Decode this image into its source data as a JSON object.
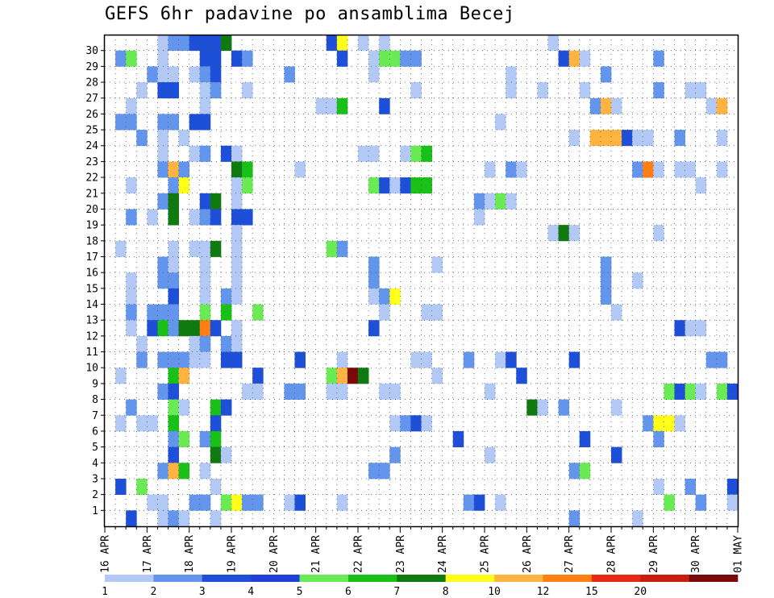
{
  "chart_data": {
    "type": "heatmap",
    "title": "GEFS 6hr padavine po ansamblima Becej",
    "xlabel": "",
    "ylabel": "",
    "x_ticks": [
      "16 APR",
      "17 APR",
      "18 APR",
      "19 APR",
      "20 APR",
      "21 APR",
      "22 APR",
      "23 APR",
      "24 APR",
      "25 APR",
      "26 APR",
      "27 APR",
      "28 APR",
      "29 APR",
      "30 APR",
      "01 MAY"
    ],
    "y_range": [
      1,
      30
    ],
    "steps_per_day": 4,
    "grid": "dotted",
    "legend_position": "bottom",
    "legend": {
      "levels": [
        "1",
        "2",
        "3",
        "4",
        "5",
        "6",
        "7",
        "8",
        "10",
        "12",
        "15",
        "20"
      ],
      "colors": [
        "#b3c9f5",
        "#6495ed",
        "#1e4fd8",
        "#1f3fd6",
        "#6aea55",
        "#18c018",
        "#0f7a0f",
        "#ffff1a",
        "#ffb340",
        "#ff7f14",
        "#e62814",
        "#c81e0e",
        "#7a0a0a"
      ]
    },
    "cells": [
      [
        30,
        5,
        0
      ],
      [
        30,
        6,
        1
      ],
      [
        30,
        7,
        1
      ],
      [
        30,
        8,
        2
      ],
      [
        30,
        9,
        2
      ],
      [
        30,
        10,
        2
      ],
      [
        30,
        11,
        6
      ],
      [
        30,
        21,
        2
      ],
      [
        30,
        22,
        7
      ],
      [
        30,
        24,
        0
      ],
      [
        30,
        26,
        0
      ],
      [
        30,
        42,
        0
      ],
      [
        29,
        1,
        1
      ],
      [
        29,
        2,
        4
      ],
      [
        29,
        5,
        0
      ],
      [
        29,
        9,
        2
      ],
      [
        29,
        10,
        2
      ],
      [
        29,
        12,
        2
      ],
      [
        29,
        13,
        1
      ],
      [
        29,
        22,
        2
      ],
      [
        29,
        25,
        0
      ],
      [
        29,
        26,
        4
      ],
      [
        29,
        27,
        4
      ],
      [
        29,
        28,
        1
      ],
      [
        29,
        29,
        1
      ],
      [
        29,
        43,
        2
      ],
      [
        29,
        44,
        8
      ],
      [
        29,
        45,
        0
      ],
      [
        29,
        52,
        1
      ],
      [
        28,
        4,
        1
      ],
      [
        28,
        5,
        0
      ],
      [
        28,
        6,
        0
      ],
      [
        28,
        8,
        0
      ],
      [
        28,
        9,
        1
      ],
      [
        28,
        10,
        2
      ],
      [
        28,
        17,
        1
      ],
      [
        28,
        25,
        0
      ],
      [
        28,
        38,
        0
      ],
      [
        28,
        47,
        1
      ],
      [
        27,
        3,
        0
      ],
      [
        27,
        5,
        2
      ],
      [
        27,
        6,
        2
      ],
      [
        27,
        9,
        0
      ],
      [
        27,
        10,
        1
      ],
      [
        27,
        13,
        0
      ],
      [
        27,
        29,
        0
      ],
      [
        27,
        38,
        0
      ],
      [
        27,
        41,
        0
      ],
      [
        27,
        45,
        0
      ],
      [
        27,
        52,
        1
      ],
      [
        27,
        55,
        0
      ],
      [
        27,
        56,
        0
      ],
      [
        26,
        2,
        0
      ],
      [
        26,
        9,
        0
      ],
      [
        26,
        20,
        0
      ],
      [
        26,
        21,
        0
      ],
      [
        26,
        22,
        5
      ],
      [
        26,
        26,
        2
      ],
      [
        26,
        46,
        1
      ],
      [
        26,
        47,
        8
      ],
      [
        26,
        48,
        0
      ],
      [
        26,
        57,
        0
      ],
      [
        26,
        58,
        8
      ],
      [
        25,
        1,
        1
      ],
      [
        25,
        2,
        1
      ],
      [
        25,
        5,
        1
      ],
      [
        25,
        6,
        1
      ],
      [
        25,
        8,
        2
      ],
      [
        25,
        9,
        2
      ],
      [
        25,
        37,
        0
      ],
      [
        24,
        3,
        1
      ],
      [
        24,
        5,
        0
      ],
      [
        24,
        7,
        0
      ],
      [
        24,
        44,
        0
      ],
      [
        24,
        46,
        8
      ],
      [
        24,
        47,
        8
      ],
      [
        24,
        48,
        8
      ],
      [
        24,
        49,
        2
      ],
      [
        24,
        50,
        0
      ],
      [
        24,
        51,
        0
      ],
      [
        24,
        54,
        1
      ],
      [
        24,
        58,
        0
      ],
      [
        23,
        5,
        0
      ],
      [
        23,
        8,
        0
      ],
      [
        23,
        9,
        1
      ],
      [
        23,
        11,
        2
      ],
      [
        23,
        12,
        0
      ],
      [
        23,
        24,
        0
      ],
      [
        23,
        25,
        0
      ],
      [
        23,
        28,
        0
      ],
      [
        23,
        29,
        4
      ],
      [
        23,
        30,
        5
      ],
      [
        22,
        5,
        1
      ],
      [
        22,
        6,
        8
      ],
      [
        22,
        7,
        1
      ],
      [
        22,
        12,
        6
      ],
      [
        22,
        13,
        5
      ],
      [
        22,
        18,
        0
      ],
      [
        22,
        36,
        0
      ],
      [
        22,
        38,
        1
      ],
      [
        22,
        39,
        0
      ],
      [
        22,
        50,
        1
      ],
      [
        22,
        51,
        9
      ],
      [
        22,
        52,
        0
      ],
      [
        22,
        54,
        0
      ],
      [
        22,
        55,
        0
      ],
      [
        22,
        58,
        0
      ],
      [
        21,
        2,
        0
      ],
      [
        21,
        6,
        1
      ],
      [
        21,
        7,
        7
      ],
      [
        21,
        12,
        0
      ],
      [
        21,
        13,
        4
      ],
      [
        21,
        25,
        4
      ],
      [
        21,
        26,
        2
      ],
      [
        21,
        27,
        0
      ],
      [
        21,
        28,
        2
      ],
      [
        21,
        29,
        5
      ],
      [
        21,
        30,
        5
      ],
      [
        21,
        56,
        0
      ],
      [
        20,
        5,
        1
      ],
      [
        20,
        6,
        6
      ],
      [
        20,
        9,
        2
      ],
      [
        20,
        10,
        6
      ],
      [
        20,
        12,
        0
      ],
      [
        20,
        35,
        1
      ],
      [
        20,
        36,
        0
      ],
      [
        20,
        37,
        4
      ],
      [
        20,
        38,
        0
      ],
      [
        19,
        2,
        1
      ],
      [
        19,
        4,
        0
      ],
      [
        19,
        6,
        6
      ],
      [
        19,
        8,
        0
      ],
      [
        19,
        9,
        1
      ],
      [
        19,
        10,
        2
      ],
      [
        19,
        12,
        2
      ],
      [
        19,
        13,
        2
      ],
      [
        19,
        35,
        0
      ],
      [
        18,
        12,
        0
      ],
      [
        18,
        42,
        0
      ],
      [
        18,
        43,
        6
      ],
      [
        18,
        44,
        0
      ],
      [
        18,
        52,
        0
      ],
      [
        17,
        1,
        0
      ],
      [
        17,
        6,
        0
      ],
      [
        17,
        8,
        0
      ],
      [
        17,
        9,
        0
      ],
      [
        17,
        10,
        6
      ],
      [
        17,
        12,
        0
      ],
      [
        17,
        21,
        4
      ],
      [
        17,
        22,
        1
      ],
      [
        16,
        5,
        1
      ],
      [
        16,
        6,
        0
      ],
      [
        16,
        9,
        0
      ],
      [
        16,
        12,
        0
      ],
      [
        16,
        25,
        1
      ],
      [
        16,
        31,
        0
      ],
      [
        16,
        47,
        1
      ],
      [
        15,
        2,
        0
      ],
      [
        15,
        5,
        1
      ],
      [
        15,
        6,
        1
      ],
      [
        15,
        9,
        0
      ],
      [
        15,
        12,
        0
      ],
      [
        15,
        25,
        1
      ],
      [
        15,
        47,
        1
      ],
      [
        15,
        50,
        0
      ],
      [
        14,
        2,
        0
      ],
      [
        14,
        6,
        2
      ],
      [
        14,
        9,
        0
      ],
      [
        14,
        11,
        1
      ],
      [
        14,
        12,
        0
      ],
      [
        14,
        25,
        0
      ],
      [
        14,
        26,
        1
      ],
      [
        14,
        27,
        7
      ],
      [
        14,
        47,
        1
      ],
      [
        13,
        2,
        1
      ],
      [
        13,
        4,
        1
      ],
      [
        13,
        5,
        1
      ],
      [
        13,
        6,
        1
      ],
      [
        13,
        9,
        4
      ],
      [
        13,
        11,
        5
      ],
      [
        13,
        14,
        4
      ],
      [
        13,
        26,
        0
      ],
      [
        13,
        30,
        0
      ],
      [
        13,
        31,
        0
      ],
      [
        13,
        48,
        0
      ],
      [
        12,
        2,
        0
      ],
      [
        12,
        4,
        2
      ],
      [
        12,
        5,
        5
      ],
      [
        12,
        6,
        1
      ],
      [
        12,
        7,
        6
      ],
      [
        12,
        8,
        6
      ],
      [
        12,
        9,
        9
      ],
      [
        12,
        10,
        2
      ],
      [
        12,
        12,
        0
      ],
      [
        12,
        25,
        2
      ],
      [
        12,
        54,
        2
      ],
      [
        12,
        55,
        0
      ],
      [
        12,
        56,
        0
      ],
      [
        11,
        3,
        0
      ],
      [
        11,
        8,
        0
      ],
      [
        11,
        9,
        1
      ],
      [
        11,
        11,
        1
      ],
      [
        11,
        12,
        0
      ],
      [
        10,
        3,
        1
      ],
      [
        10,
        5,
        1
      ],
      [
        10,
        6,
        1
      ],
      [
        10,
        7,
        1
      ],
      [
        10,
        8,
        0
      ],
      [
        10,
        9,
        0
      ],
      [
        10,
        11,
        2
      ],
      [
        10,
        12,
        2
      ],
      [
        10,
        18,
        2
      ],
      [
        10,
        22,
        0
      ],
      [
        10,
        29,
        0
      ],
      [
        10,
        30,
        0
      ],
      [
        10,
        34,
        1
      ],
      [
        10,
        37,
        0
      ],
      [
        10,
        38,
        2
      ],
      [
        10,
        44,
        2
      ],
      [
        10,
        57,
        1
      ],
      [
        10,
        58,
        1
      ],
      [
        9,
        1,
        0
      ],
      [
        9,
        6,
        5
      ],
      [
        9,
        7,
        8
      ],
      [
        9,
        14,
        2
      ],
      [
        9,
        21,
        4
      ],
      [
        9,
        22,
        8
      ],
      [
        9,
        23,
        12
      ],
      [
        9,
        24,
        6
      ],
      [
        9,
        31,
        0
      ],
      [
        9,
        39,
        2
      ],
      [
        8,
        5,
        1
      ],
      [
        8,
        6,
        2
      ],
      [
        8,
        13,
        0
      ],
      [
        8,
        14,
        0
      ],
      [
        8,
        17,
        1
      ],
      [
        8,
        18,
        1
      ],
      [
        8,
        21,
        0
      ],
      [
        8,
        22,
        0
      ],
      [
        8,
        26,
        0
      ],
      [
        8,
        27,
        0
      ],
      [
        8,
        36,
        0
      ],
      [
        8,
        53,
        4
      ],
      [
        8,
        54,
        2
      ],
      [
        8,
        55,
        4
      ],
      [
        8,
        56,
        0
      ],
      [
        8,
        58,
        4
      ],
      [
        8,
        59,
        2
      ],
      [
        7,
        2,
        1
      ],
      [
        7,
        6,
        4
      ],
      [
        7,
        7,
        0
      ],
      [
        7,
        10,
        5
      ],
      [
        7,
        11,
        2
      ],
      [
        7,
        40,
        6
      ],
      [
        7,
        41,
        0
      ],
      [
        7,
        43,
        1
      ],
      [
        7,
        48,
        0
      ],
      [
        6,
        1,
        0
      ],
      [
        6,
        3,
        0
      ],
      [
        6,
        4,
        0
      ],
      [
        6,
        6,
        5
      ],
      [
        6,
        10,
        2
      ],
      [
        6,
        27,
        0
      ],
      [
        6,
        28,
        1
      ],
      [
        6,
        29,
        2
      ],
      [
        6,
        30,
        0
      ],
      [
        6,
        51,
        1
      ],
      [
        6,
        52,
        7
      ],
      [
        6,
        53,
        7
      ],
      [
        6,
        54,
        0
      ],
      [
        5,
        6,
        1
      ],
      [
        5,
        7,
        4
      ],
      [
        5,
        9,
        1
      ],
      [
        5,
        10,
        5
      ],
      [
        5,
        33,
        2
      ],
      [
        5,
        45,
        2
      ],
      [
        5,
        52,
        1
      ],
      [
        4,
        6,
        2
      ],
      [
        4,
        10,
        6
      ],
      [
        4,
        11,
        0
      ],
      [
        4,
        27,
        1
      ],
      [
        4,
        36,
        0
      ],
      [
        4,
        48,
        2
      ],
      [
        3,
        5,
        1
      ],
      [
        3,
        6,
        8
      ],
      [
        3,
        7,
        5
      ],
      [
        3,
        9,
        0
      ],
      [
        3,
        25,
        1
      ],
      [
        3,
        26,
        1
      ],
      [
        3,
        44,
        1
      ],
      [
        3,
        45,
        4
      ],
      [
        2,
        1,
        2
      ],
      [
        2,
        3,
        4
      ],
      [
        2,
        10,
        0
      ],
      [
        2,
        52,
        0
      ],
      [
        2,
        55,
        1
      ],
      [
        2,
        59,
        2
      ],
      [
        1,
        4,
        0
      ],
      [
        1,
        5,
        0
      ],
      [
        1,
        8,
        1
      ],
      [
        1,
        9,
        1
      ],
      [
        1,
        11,
        4
      ],
      [
        1,
        12,
        7
      ],
      [
        1,
        13,
        1
      ],
      [
        1,
        14,
        1
      ],
      [
        1,
        17,
        0
      ],
      [
        1,
        18,
        2
      ],
      [
        1,
        22,
        0
      ],
      [
        1,
        34,
        1
      ],
      [
        1,
        35,
        2
      ],
      [
        1,
        37,
        0
      ],
      [
        1,
        53,
        4
      ],
      [
        1,
        56,
        1
      ],
      [
        1,
        59,
        0
      ],
      [
        0,
        2,
        2
      ],
      [
        0,
        5,
        0
      ],
      [
        0,
        6,
        1
      ],
      [
        0,
        7,
        0
      ],
      [
        0,
        10,
        0
      ],
      [
        0,
        44,
        1
      ],
      [
        0,
        50,
        0
      ]
    ]
  }
}
